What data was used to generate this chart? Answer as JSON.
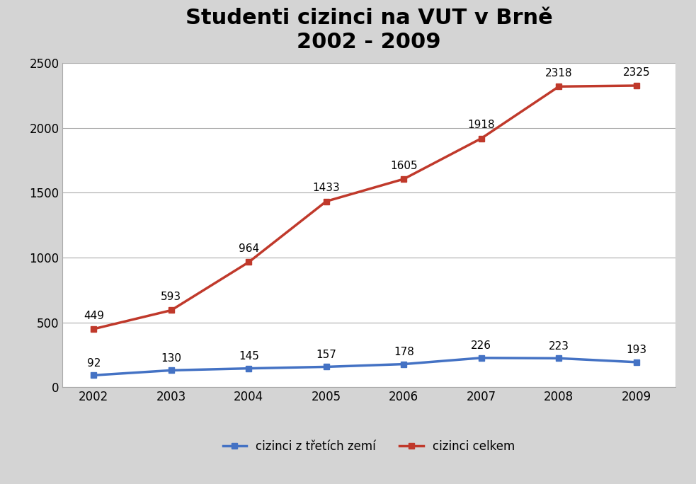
{
  "title_line1": "Studenti cizinci na VUT v Brně",
  "title_line2": "2002 - 2009",
  "years": [
    2002,
    2003,
    2004,
    2005,
    2006,
    2007,
    2008,
    2009
  ],
  "celkem": [
    449,
    593,
    964,
    1433,
    1605,
    1918,
    2318,
    2325
  ],
  "treti_zeme": [
    92,
    130,
    145,
    157,
    178,
    226,
    223,
    193
  ],
  "celkem_color": "#C0392B",
  "treti_zeme_color": "#4472C4",
  "background_color": "#D4D4D4",
  "plot_background_color": "#FFFFFF",
  "ylim": [
    0,
    2500
  ],
  "yticks": [
    0,
    500,
    1000,
    1500,
    2000,
    2500
  ],
  "legend_celkem": "cizinci celkem",
  "legend_treti": "cizinci z třetích zemí",
  "title_fontsize": 22,
  "label_fontsize": 11,
  "tick_fontsize": 12,
  "legend_fontsize": 12,
  "line_width": 2.5,
  "marker_size": 6
}
